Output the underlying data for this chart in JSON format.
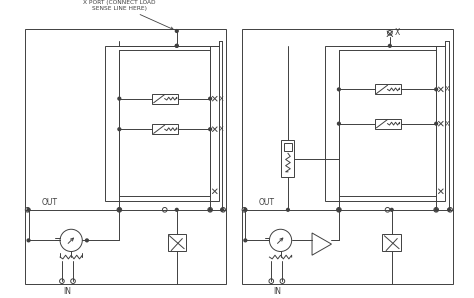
{
  "bg_color": "#ffffff",
  "line_color": "#404040",
  "annotation_left": "X PORT (CONNECT LOAD\nSENSE LINE HERE)",
  "label_out": "OUT",
  "label_in": "IN",
  "label_x": "X"
}
